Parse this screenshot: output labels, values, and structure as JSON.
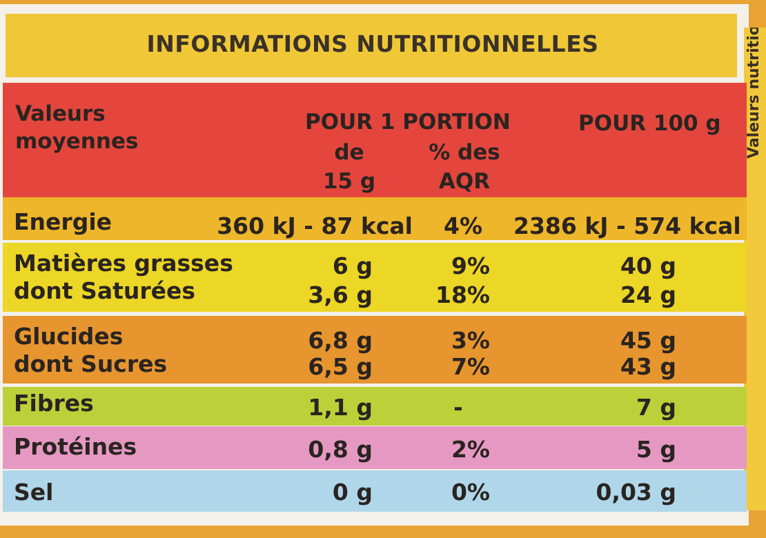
{
  "title": "INFORMATIONS NUTRITIONNELLES",
  "side_text": "Valeurs nutritionnelles",
  "header": {
    "valeurs_line1": "Valeurs",
    "valeurs_line2": "moyennes",
    "portion_title": "POUR 1 PORTION",
    "portion_de": "de",
    "portion_weight": "15 g",
    "aqr_line1": "% des",
    "aqr_line2": "AQR",
    "per100": "POUR 100 g"
  },
  "rows": {
    "energie": {
      "label": "Energie",
      "portion": "360 kJ - 87 kcal",
      "aqr": "4%",
      "per100": "2386 kJ - 574 kcal"
    },
    "matieres_grasses": {
      "label": "Matières grasses",
      "portion": "6 g",
      "aqr": "9%",
      "per100": "40 g"
    },
    "saturees": {
      "label": "dont Saturées",
      "portion": "3,6 g",
      "aqr": "18%",
      "per100": "24 g"
    },
    "glucides": {
      "label": "Glucides",
      "portion": "6,8 g",
      "aqr": "3%",
      "per100": "45 g"
    },
    "sucres": {
      "label": "dont Sucres",
      "portion": "6,5 g",
      "aqr": "7%",
      "per100": "43 g"
    },
    "fibres": {
      "label": "Fibres",
      "portion": "1,1 g",
      "aqr": "-",
      "per100": "7 g"
    },
    "proteines": {
      "label": "Protéines",
      "portion": "0,8 g",
      "aqr": "2%",
      "per100": "5 g"
    },
    "sel": {
      "label": "Sel",
      "portion": "0 g",
      "aqr": "0%",
      "per100": "0,03 g"
    }
  },
  "colors": {
    "header": "#e4463e",
    "energie": "#eeb62a",
    "matieres_grasses": "#ecd626",
    "glucides": "#e7952f",
    "fibres": "#bcd03a",
    "proteines": "#e599c2",
    "sel": "#b0d6ea",
    "title_band": "#f0c737"
  }
}
